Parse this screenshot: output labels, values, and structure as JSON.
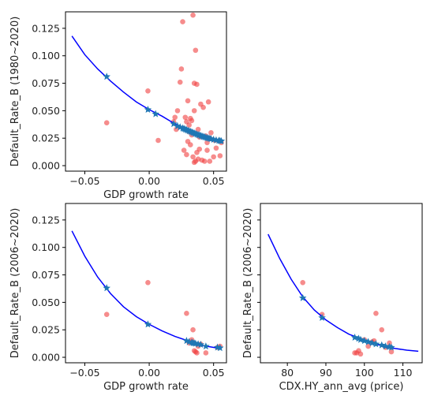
{
  "chart_data": [
    {
      "type": "scatter",
      "xlabel": "GDP growth rate",
      "ylabel": "Default_Rate_B (1980~2020)",
      "xlim": [
        -0.065,
        0.06
      ],
      "ylim": [
        -0.005,
        0.14
      ],
      "xticks": [
        -0.05,
        0.0,
        0.05
      ],
      "xtick_labels": [
        "−0.05",
        "0.00",
        "0.05"
      ],
      "yticks": [
        0.0,
        0.025,
        0.05,
        0.075,
        0.1,
        0.125
      ],
      "ytick_labels": [
        "0.000",
        "0.025",
        "0.050",
        "0.075",
        "0.100",
        "0.125"
      ],
      "grid": false,
      "colors": {
        "scatter": "#f04040",
        "curve": "#0000ff",
        "fit_points": "#1f77b4"
      },
      "series": [
        {
          "kind": "observed",
          "x": [
            -0.033,
            -0.001,
            0.007,
            0.02,
            0.022,
            0.024,
            0.025,
            0.026,
            0.028,
            0.029,
            0.03,
            0.03,
            0.031,
            0.032,
            0.033,
            0.034,
            0.035,
            0.035,
            0.036,
            0.037,
            0.037,
            0.038,
            0.039,
            0.04,
            0.041,
            0.042,
            0.043,
            0.044,
            0.045,
            0.046,
            0.047,
            0.048,
            0.05,
            0.051,
            0.052,
            0.055,
            0.056,
            0.019,
            0.021,
            0.027,
            0.034,
            0.036,
            0.038,
            0.033,
            0.031,
            0.039,
            0.029,
            0.032,
            0.035,
            0.045,
            0.047
          ],
          "y": [
            0.039,
            0.068,
            0.023,
            0.044,
            0.05,
            0.076,
            0.088,
            0.131,
            0.044,
            0.04,
            0.059,
            0.022,
            0.031,
            0.043,
            0.041,
            0.137,
            0.075,
            0.05,
            0.105,
            0.074,
            0.012,
            0.033,
            0.026,
            0.056,
            0.005,
            0.053,
            0.004,
            0.027,
            0.021,
            0.058,
            0.004,
            0.03,
            0.008,
            0.023,
            0.016,
            0.009,
            0.021,
            0.04,
            0.033,
            0.014,
            0.008,
            0.004,
            0.006,
            0.028,
            0.037,
            0.015,
            0.01,
            0.019,
            0.003,
            0.014,
            0.025
          ]
        },
        {
          "kind": "fitted",
          "x": [
            -0.033,
            -0.001,
            0.005,
            0.019,
            0.022,
            0.024,
            0.026,
            0.027,
            0.028,
            0.029,
            0.03,
            0.031,
            0.032,
            0.033,
            0.034,
            0.035,
            0.036,
            0.037,
            0.038,
            0.039,
            0.04,
            0.041,
            0.042,
            0.043,
            0.044,
            0.045,
            0.046,
            0.047,
            0.048,
            0.05,
            0.052,
            0.054,
            0.055,
            0.056
          ],
          "y": [
            0.081,
            0.051,
            0.047,
            0.038,
            0.036,
            0.035,
            0.034,
            0.0335,
            0.033,
            0.0325,
            0.032,
            0.0315,
            0.031,
            0.0305,
            0.03,
            0.0295,
            0.029,
            0.0285,
            0.028,
            0.0278,
            0.0272,
            0.0268,
            0.0263,
            0.026,
            0.0256,
            0.0252,
            0.0249,
            0.0246,
            0.0243,
            0.0237,
            0.0232,
            0.0228,
            0.0226,
            0.0224
          ]
        },
        {
          "kind": "curve",
          "x": [
            -0.06,
            -0.05,
            -0.04,
            -0.03,
            -0.02,
            -0.01,
            0.0,
            0.01,
            0.02,
            0.03,
            0.04,
            0.05,
            0.056
          ],
          "y": [
            0.118,
            0.101,
            0.088,
            0.077,
            0.067,
            0.058,
            0.051,
            0.045,
            0.038,
            0.032,
            0.027,
            0.024,
            0.023
          ]
        }
      ]
    },
    {
      "type": "scatter",
      "xlabel": "GDP growth rate",
      "ylabel": "Default_Rate_B (2006~2020)",
      "xlim": [
        -0.065,
        0.06
      ],
      "ylim": [
        -0.005,
        0.14
      ],
      "xticks": [
        -0.05,
        0.0,
        0.05
      ],
      "xtick_labels": [
        "−0.05",
        "0.00",
        "0.05"
      ],
      "yticks": [
        0.0,
        0.025,
        0.05,
        0.075,
        0.1,
        0.125
      ],
      "ytick_labels": [
        "0.000",
        "0.025",
        "0.050",
        "0.075",
        "0.100",
        "0.125"
      ],
      "grid": false,
      "colors": {
        "scatter": "#f04040",
        "curve": "#0000ff",
        "fit_points": "#1f77b4"
      },
      "series": [
        {
          "kind": "observed",
          "x": [
            -0.033,
            -0.001,
            0.029,
            0.031,
            0.033,
            0.034,
            0.035,
            0.036,
            0.037,
            0.038,
            0.04,
            0.044,
            0.053,
            0.055,
            0.033
          ],
          "y": [
            0.039,
            0.068,
            0.04,
            0.013,
            0.014,
            0.025,
            0.006,
            0.005,
            0.004,
            0.01,
            0.012,
            0.004,
            0.009,
            0.01,
            0.016
          ]
        },
        {
          "kind": "fitted",
          "x": [
            -0.033,
            -0.001,
            0.029,
            0.031,
            0.033,
            0.034,
            0.035,
            0.036,
            0.038,
            0.04,
            0.044,
            0.053,
            0.055
          ],
          "y": [
            0.063,
            0.03,
            0.015,
            0.014,
            0.0135,
            0.013,
            0.0128,
            0.0125,
            0.012,
            0.0115,
            0.01,
            0.009,
            0.0085
          ]
        },
        {
          "kind": "curve",
          "x": [
            -0.06,
            -0.05,
            -0.04,
            -0.03,
            -0.02,
            -0.01,
            0.0,
            0.01,
            0.02,
            0.03,
            0.04,
            0.05,
            0.056
          ],
          "y": [
            0.115,
            0.092,
            0.073,
            0.058,
            0.046,
            0.037,
            0.03,
            0.024,
            0.019,
            0.015,
            0.011,
            0.009,
            0.008
          ]
        }
      ]
    },
    {
      "type": "scatter",
      "xlabel": "CDX.HY_ann_avg (price)",
      "ylabel": "Default_Rate_B (2006~2020)",
      "xlim": [
        73,
        115
      ],
      "ylim": [
        -0.005,
        0.14
      ],
      "xticks": [
        80,
        90,
        100,
        110
      ],
      "xtick_labels": [
        "80",
        "90",
        "100",
        "110"
      ],
      "yticks": [
        0.0,
        0.025,
        0.05,
        0.075,
        0.1,
        0.125
      ],
      "ytick_labels": [
        "",
        "",
        "",
        "",
        "",
        ""
      ],
      "grid": false,
      "colors": {
        "scatter": "#f04040",
        "curve": "#0000ff",
        "fit_points": "#1f77b4"
      },
      "series": [
        {
          "kind": "observed",
          "x": [
            84.0,
            89.0,
            97.5,
            98.5,
            99.0,
            100.0,
            101.0,
            102.0,
            103.0,
            104.5,
            105.5,
            106.5,
            107.0,
            98.0,
            102.5
          ],
          "y": [
            0.068,
            0.039,
            0.004,
            0.006,
            0.003,
            0.016,
            0.01,
            0.014,
            0.04,
            0.025,
            0.009,
            0.013,
            0.005,
            0.004,
            0.015
          ]
        },
        {
          "kind": "fitted",
          "x": [
            84.0,
            89.0,
            97.5,
            98.5,
            99.0,
            100.0,
            101.0,
            102.0,
            103.0,
            104.5,
            105.5,
            106.5,
            107.0
          ],
          "y": [
            0.054,
            0.036,
            0.018,
            0.017,
            0.016,
            0.015,
            0.014,
            0.013,
            0.012,
            0.011,
            0.01,
            0.0095,
            0.009
          ]
        },
        {
          "kind": "curve",
          "x": [
            75,
            78,
            81,
            84,
            87,
            90,
            93,
            96,
            99,
            102,
            105,
            108,
            111,
            114
          ],
          "y": [
            0.112,
            0.09,
            0.071,
            0.055,
            0.043,
            0.034,
            0.027,
            0.021,
            0.017,
            0.013,
            0.01,
            0.008,
            0.0065,
            0.0055
          ]
        }
      ]
    }
  ]
}
